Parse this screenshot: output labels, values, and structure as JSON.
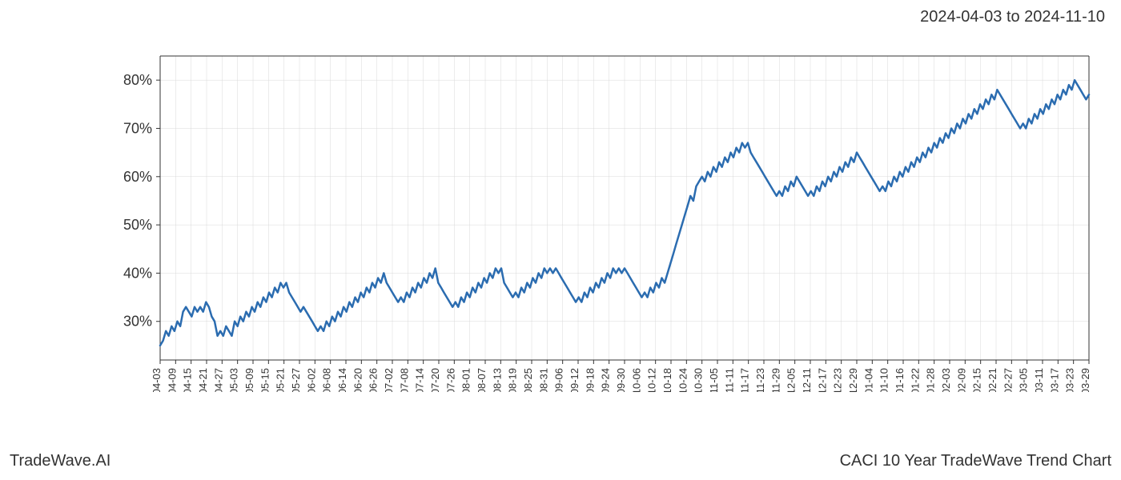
{
  "header": {
    "date_range": "2024-04-03 to 2024-11-10"
  },
  "footer": {
    "left": "TradeWave.AI",
    "right": "CACI 10 Year TradeWave Trend Chart"
  },
  "chart": {
    "type": "line",
    "line_color": "#2b6cb0",
    "line_width": 2.5,
    "background_color": "#ffffff",
    "highlight_region": {
      "fill": "#e1eedb",
      "opacity": 0.6,
      "x_start": "04-03",
      "x_end": "11-10"
    },
    "grid_color": "#d8d8d8",
    "grid_width": 0.5,
    "border_color": "#333333",
    "y_axis": {
      "min": 22,
      "max": 85,
      "ticks": [
        30,
        40,
        50,
        60,
        70,
        80
      ],
      "tick_labels": [
        "30%",
        "40%",
        "50%",
        "60%",
        "70%",
        "80%"
      ],
      "label_fontsize": 18
    },
    "x_axis": {
      "labels": [
        "04-03",
        "04-09",
        "04-15",
        "04-21",
        "04-27",
        "05-03",
        "05-09",
        "05-15",
        "05-21",
        "05-27",
        "06-02",
        "06-08",
        "06-14",
        "06-20",
        "06-26",
        "07-02",
        "07-08",
        "07-14",
        "07-20",
        "07-26",
        "08-01",
        "08-07",
        "08-13",
        "08-19",
        "08-25",
        "08-31",
        "09-06",
        "09-12",
        "09-18",
        "09-24",
        "09-30",
        "10-06",
        "10-12",
        "10-18",
        "10-24",
        "10-30",
        "11-05",
        "11-11",
        "11-17",
        "11-23",
        "11-29",
        "12-05",
        "12-11",
        "12-17",
        "12-23",
        "12-29",
        "01-04",
        "01-10",
        "01-16",
        "01-22",
        "01-28",
        "02-03",
        "02-09",
        "02-15",
        "02-21",
        "02-27",
        "03-05",
        "03-11",
        "03-17",
        "03-23",
        "03-29"
      ],
      "label_fontsize": 13,
      "rotation": -90
    },
    "data": [
      25,
      26,
      28,
      27,
      29,
      28,
      30,
      29,
      32,
      33,
      32,
      31,
      33,
      32,
      33,
      32,
      34,
      33,
      31,
      30,
      27,
      28,
      27,
      29,
      28,
      27,
      30,
      29,
      31,
      30,
      32,
      31,
      33,
      32,
      34,
      33,
      35,
      34,
      36,
      35,
      37,
      36,
      38,
      37,
      38,
      36,
      35,
      34,
      33,
      32,
      33,
      32,
      31,
      30,
      29,
      28,
      29,
      28,
      30,
      29,
      31,
      30,
      32,
      31,
      33,
      32,
      34,
      33,
      35,
      34,
      36,
      35,
      37,
      36,
      38,
      37,
      39,
      38,
      40,
      38,
      37,
      36,
      35,
      34,
      35,
      34,
      36,
      35,
      37,
      36,
      38,
      37,
      39,
      38,
      40,
      39,
      41,
      38,
      37,
      36,
      35,
      34,
      33,
      34,
      33,
      35,
      34,
      36,
      35,
      37,
      36,
      38,
      37,
      39,
      38,
      40,
      39,
      41,
      40,
      41,
      38,
      37,
      36,
      35,
      36,
      35,
      37,
      36,
      38,
      37,
      39,
      38,
      40,
      39,
      41,
      40,
      41,
      40,
      41,
      40,
      39,
      38,
      37,
      36,
      35,
      34,
      35,
      34,
      36,
      35,
      37,
      36,
      38,
      37,
      39,
      38,
      40,
      39,
      41,
      40,
      41,
      40,
      41,
      40,
      39,
      38,
      37,
      36,
      35,
      36,
      35,
      37,
      36,
      38,
      37,
      39,
      38,
      40,
      42,
      44,
      46,
      48,
      50,
      52,
      54,
      56,
      55,
      58,
      59,
      60,
      59,
      61,
      60,
      62,
      61,
      63,
      62,
      64,
      63,
      65,
      64,
      66,
      65,
      67,
      66,
      67,
      65,
      64,
      63,
      62,
      61,
      60,
      59,
      58,
      57,
      56,
      57,
      56,
      58,
      57,
      59,
      58,
      60,
      59,
      58,
      57,
      56,
      57,
      56,
      58,
      57,
      59,
      58,
      60,
      59,
      61,
      60,
      62,
      61,
      63,
      62,
      64,
      63,
      65,
      64,
      63,
      62,
      61,
      60,
      59,
      58,
      57,
      58,
      57,
      59,
      58,
      60,
      59,
      61,
      60,
      62,
      61,
      63,
      62,
      64,
      63,
      65,
      64,
      66,
      65,
      67,
      66,
      68,
      67,
      69,
      68,
      70,
      69,
      71,
      70,
      72,
      71,
      73,
      72,
      74,
      73,
      75,
      74,
      76,
      75,
      77,
      76,
      78,
      77,
      76,
      75,
      74,
      73,
      72,
      71,
      70,
      71,
      70,
      72,
      71,
      73,
      72,
      74,
      73,
      75,
      74,
      76,
      75,
      77,
      76,
      78,
      77,
      79,
      78,
      80,
      79,
      78,
      77,
      76,
      77
    ]
  }
}
